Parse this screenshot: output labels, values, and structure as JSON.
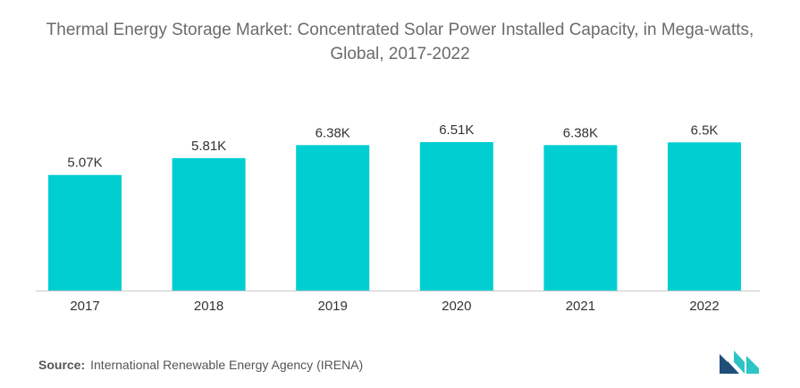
{
  "chart_data": {
    "type": "bar",
    "title": "Thermal Energy Storage Market: Concentrated Solar Power Installed Capacity, in Mega-watts, Global, 2017-2022",
    "categories": [
      "2017",
      "2018",
      "2019",
      "2020",
      "2021",
      "2022"
    ],
    "values": [
      5070,
      5810,
      6380,
      6510,
      6380,
      6500
    ],
    "data_labels": [
      "5.07K",
      "5.81K",
      "6.38K",
      "6.51K",
      "6.38K",
      "6.5K"
    ],
    "xlabel": "",
    "ylabel": "",
    "ylim": [
      0,
      6800
    ],
    "grid": false,
    "legend": "none",
    "bar_color": "#00CED1",
    "axis_color": "#cccccc"
  },
  "source": {
    "label": "Source:",
    "text": "International Renewable Energy Agency (IRENA)"
  },
  "logo": {
    "icon": "mordor-intelligence-logo-icon",
    "color_left": "#1f4e79",
    "color_right": "#2ec4c6"
  }
}
